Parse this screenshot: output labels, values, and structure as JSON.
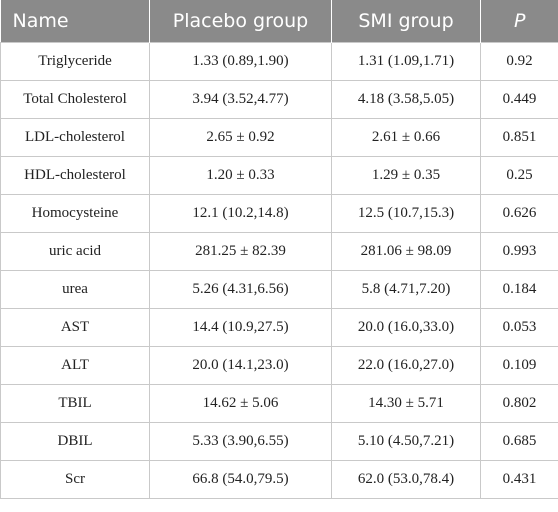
{
  "table": {
    "headers": [
      "Name",
      "Placebo group",
      "SMI group",
      "P"
    ],
    "rows": [
      [
        "Triglyceride",
        "1.33 (0.89,1.90)",
        "1.31 (1.09,1.71)",
        "0.92"
      ],
      [
        "Total Cholesterol",
        "3.94 (3.52,4.77)",
        "4.18 (3.58,5.05)",
        "0.449"
      ],
      [
        "LDL-cholesterol",
        "2.65 ± 0.92",
        "2.61 ± 0.66",
        "0.851"
      ],
      [
        "HDL-cholesterol",
        "1.20 ± 0.33",
        "1.29 ± 0.35",
        "0.25"
      ],
      [
        "Homocysteine",
        "12.1 (10.2,14.8)",
        "12.5 (10.7,15.3)",
        "0.626"
      ],
      [
        "uric acid",
        "281.25 ± 82.39",
        "281.06 ± 98.09",
        "0.993"
      ],
      [
        "urea",
        "5.26 (4.31,6.56)",
        "5.8 (4.71,7.20)",
        "0.184"
      ],
      [
        "AST",
        "14.4 (10.9,27.5)",
        "20.0 (16.0,33.0)",
        "0.053"
      ],
      [
        "ALT",
        "20.0 (14.1,23.0)",
        "22.0 (16.0,27.0)",
        "0.109"
      ],
      [
        "TBIL",
        "14.62 ± 5.06",
        "14.30 ± 5.71",
        "0.802"
      ],
      [
        "DBIL",
        "5.33 (3.90,6.55)",
        "5.10 (4.50,7.21)",
        "0.685"
      ],
      [
        "Scr",
        "66.8 (54.0,79.5)",
        "62.0 (53.0,78.4)",
        "0.431"
      ]
    ]
  },
  "colors": {
    "header_bg": "#8a8a8a",
    "header_text": "#ffffff",
    "grid": "#c9c9c9"
  }
}
